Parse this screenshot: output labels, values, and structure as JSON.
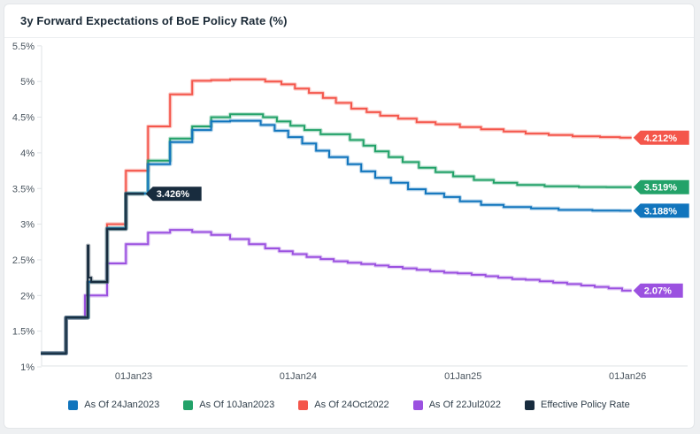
{
  "chart_data": {
    "type": "line",
    "step": true,
    "title": "3y Forward Expectations of BoE Policy Rate (%)",
    "legend_position": "bottom",
    "grid": false,
    "colors": {
      "axis_line": "#dfe3e6",
      "tick_text": "#49545e",
      "legend_text": "#2e3d49",
      "tag_text": "#ffffff"
    },
    "y_axis": {
      "min": 1,
      "max": 5.5,
      "unit": "%",
      "ticks": [
        [
          1,
          "1%"
        ],
        [
          1.5,
          "1.5%"
        ],
        [
          2,
          "2%"
        ],
        [
          2.5,
          "2.5%"
        ],
        [
          3,
          "3%"
        ],
        [
          3.5,
          "3.5%"
        ],
        [
          4,
          "4%"
        ],
        [
          4.5,
          "4.5%"
        ],
        [
          5,
          "5%"
        ],
        [
          5.5,
          "5.5%"
        ]
      ]
    },
    "x_axis": {
      "start": "2022-06-09",
      "end": "2026-01-10",
      "ticks": [
        [
          "2023-01-01",
          "01Jan23"
        ],
        [
          "2024-01-01",
          "01Jan24"
        ],
        [
          "2025-01-01",
          "01Jan25"
        ],
        [
          "2026-01-01",
          "01Jan26"
        ]
      ]
    },
    "draw_order": [
      3,
      2,
      1,
      0,
      4
    ],
    "series": [
      {
        "name": "As Of 24Jan2023",
        "color": "#1175bd",
        "end_label": "3.188%",
        "end_date": "2026-01-10",
        "points": [
          [
            "2022-06-09",
            1.19
          ],
          [
            "2022-08-04",
            1.69
          ],
          [
            "2022-09-22",
            2.19
          ],
          [
            "2022-11-03",
            2.94
          ],
          [
            "2022-12-15",
            3.43
          ],
          [
            "2023-02-02",
            3.84
          ],
          [
            "2023-03-23",
            4.15
          ],
          [
            "2023-05-11",
            4.32
          ],
          [
            "2023-06-22",
            4.44
          ],
          [
            "2023-08-03",
            4.45
          ],
          [
            "2023-10-10",
            4.39
          ],
          [
            "2023-11-10",
            4.31
          ],
          [
            "2023-12-10",
            4.22
          ],
          [
            "2024-01-10",
            4.13
          ],
          [
            "2024-02-10",
            4.03
          ],
          [
            "2024-03-10",
            3.94
          ],
          [
            "2024-04-20",
            3.84
          ],
          [
            "2024-05-20",
            3.74
          ],
          [
            "2024-06-20",
            3.65
          ],
          [
            "2024-07-25",
            3.58
          ],
          [
            "2024-09-01",
            3.49
          ],
          [
            "2024-10-10",
            3.43
          ],
          [
            "2024-11-20",
            3.38
          ],
          [
            "2024-12-25",
            3.32
          ],
          [
            "2025-02-10",
            3.27
          ],
          [
            "2025-04-01",
            3.24
          ],
          [
            "2025-06-01",
            3.22
          ],
          [
            "2025-08-01",
            3.2
          ],
          [
            "2025-10-15",
            3.19
          ],
          [
            "2025-12-15",
            3.188
          ]
        ]
      },
      {
        "name": "As Of 10Jan2023",
        "color": "#23a269",
        "end_label": "3.519%",
        "end_date": "2026-01-10",
        "points": [
          [
            "2022-06-09",
            1.19
          ],
          [
            "2022-08-04",
            1.69
          ],
          [
            "2022-09-22",
            2.19
          ],
          [
            "2022-11-03",
            2.94
          ],
          [
            "2022-12-15",
            3.43
          ],
          [
            "2023-02-02",
            3.89
          ],
          [
            "2023-03-23",
            4.2
          ],
          [
            "2023-05-11",
            4.37
          ],
          [
            "2023-06-22",
            4.5
          ],
          [
            "2023-08-03",
            4.54
          ],
          [
            "2023-10-15",
            4.5
          ],
          [
            "2023-11-15",
            4.44
          ],
          [
            "2023-12-15",
            4.38
          ],
          [
            "2024-01-15",
            4.32
          ],
          [
            "2024-02-20",
            4.26
          ],
          [
            "2024-04-25",
            4.18
          ],
          [
            "2024-05-25",
            4.1
          ],
          [
            "2024-06-20",
            4.02
          ],
          [
            "2024-07-20",
            3.94
          ],
          [
            "2024-08-20",
            3.87
          ],
          [
            "2024-09-25",
            3.79
          ],
          [
            "2024-11-01",
            3.73
          ],
          [
            "2024-12-10",
            3.67
          ],
          [
            "2025-01-25",
            3.62
          ],
          [
            "2025-03-10",
            3.58
          ],
          [
            "2025-05-01",
            3.55
          ],
          [
            "2025-07-01",
            3.53
          ],
          [
            "2025-09-15",
            3.52
          ],
          [
            "2025-11-15",
            3.519
          ]
        ]
      },
      {
        "name": "As Of 24Oct2022",
        "color": "#f4564b",
        "end_label": "4.212%",
        "end_date": "2026-01-10",
        "points": [
          [
            "2022-06-09",
            1.19
          ],
          [
            "2022-08-04",
            1.69
          ],
          [
            "2022-09-22",
            2.19
          ],
          [
            "2022-11-03",
            3.0
          ],
          [
            "2022-12-15",
            3.75
          ],
          [
            "2023-02-02",
            4.37
          ],
          [
            "2023-03-23",
            4.82
          ],
          [
            "2023-05-11",
            5.01
          ],
          [
            "2023-06-22",
            5.02
          ],
          [
            "2023-08-03",
            5.03
          ],
          [
            "2023-10-20",
            5.0
          ],
          [
            "2023-11-25",
            4.96
          ],
          [
            "2023-12-25",
            4.9
          ],
          [
            "2024-01-25",
            4.84
          ],
          [
            "2024-02-25",
            4.77
          ],
          [
            "2024-03-25",
            4.7
          ],
          [
            "2024-04-28",
            4.62
          ],
          [
            "2024-06-01",
            4.57
          ],
          [
            "2024-07-01",
            4.52
          ],
          [
            "2024-08-10",
            4.48
          ],
          [
            "2024-09-20",
            4.43
          ],
          [
            "2024-11-01",
            4.4
          ],
          [
            "2024-12-25",
            4.36
          ],
          [
            "2025-02-10",
            4.33
          ],
          [
            "2025-04-01",
            4.3
          ],
          [
            "2025-05-20",
            4.27
          ],
          [
            "2025-07-10",
            4.25
          ],
          [
            "2025-09-01",
            4.23
          ],
          [
            "2025-11-01",
            4.22
          ],
          [
            "2025-12-15",
            4.212
          ]
        ]
      },
      {
        "name": "As Of 22Jul2022",
        "color": "#9b51e0",
        "end_label": "2.07%",
        "end_date": "2026-01-10",
        "points": [
          [
            "2022-06-09",
            1.19
          ],
          [
            "2022-08-04",
            1.69
          ],
          [
            "2022-09-15",
            2.0
          ],
          [
            "2022-11-03",
            2.45
          ],
          [
            "2022-12-15",
            2.72
          ],
          [
            "2023-02-02",
            2.88
          ],
          [
            "2023-03-23",
            2.92
          ],
          [
            "2023-05-11",
            2.89
          ],
          [
            "2023-06-22",
            2.85
          ],
          [
            "2023-08-03",
            2.79
          ],
          [
            "2023-09-14",
            2.72
          ],
          [
            "2023-10-20",
            2.66
          ],
          [
            "2023-11-20",
            2.62
          ],
          [
            "2023-12-20",
            2.58
          ],
          [
            "2024-01-20",
            2.54
          ],
          [
            "2024-02-20",
            2.51
          ],
          [
            "2024-03-20",
            2.48
          ],
          [
            "2024-04-20",
            2.46
          ],
          [
            "2024-05-20",
            2.44
          ],
          [
            "2024-06-20",
            2.42
          ],
          [
            "2024-07-20",
            2.4
          ],
          [
            "2024-08-20",
            2.38
          ],
          [
            "2024-09-20",
            2.36
          ],
          [
            "2024-10-20",
            2.34
          ],
          [
            "2024-11-20",
            2.32
          ],
          [
            "2024-12-20",
            2.31
          ],
          [
            "2025-01-20",
            2.29
          ],
          [
            "2025-02-20",
            2.27
          ],
          [
            "2025-03-20",
            2.25
          ],
          [
            "2025-04-20",
            2.23
          ],
          [
            "2025-05-20",
            2.22
          ],
          [
            "2025-06-20",
            2.2
          ],
          [
            "2025-07-20",
            2.18
          ],
          [
            "2025-08-20",
            2.16
          ],
          [
            "2025-09-20",
            2.14
          ],
          [
            "2025-10-20",
            2.12
          ],
          [
            "2025-11-20",
            2.1
          ],
          [
            "2025-12-20",
            2.07
          ]
        ]
      },
      {
        "name": "Effective Policy Rate",
        "color": "#182c3e",
        "end_label": "3.426%",
        "end_date": "2023-01-24",
        "points": [
          [
            "2022-06-09",
            1.19
          ],
          [
            "2022-08-04",
            1.69
          ],
          [
            "2022-09-21",
            2.7
          ],
          [
            "2022-09-23",
            2.25
          ],
          [
            "2022-09-29",
            2.19
          ],
          [
            "2022-11-03",
            2.93
          ],
          [
            "2022-12-15",
            3.426
          ]
        ]
      }
    ]
  }
}
